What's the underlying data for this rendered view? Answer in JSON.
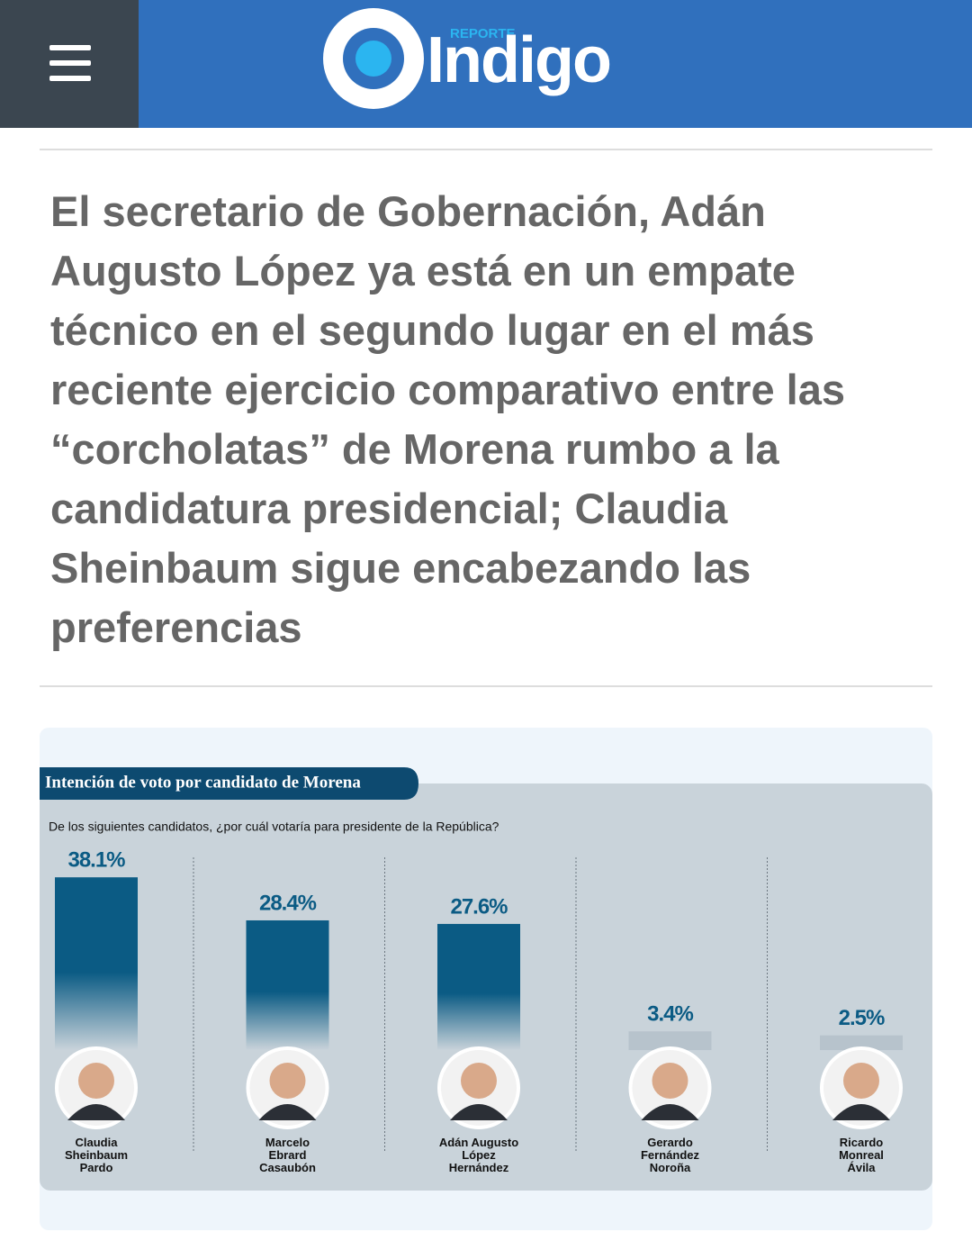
{
  "header": {
    "logo_small": "REPORTE",
    "logo_text": "Indigo"
  },
  "headline": "El secretario de Gobernación, Adán Augusto López ya está en un empate técnico en el segundo lugar en el más reciente ejercicio comparativo entre las “corcholatas” de Morena rumbo a la candidatura presidencial; Claudia Sheinbaum sigue encabezando las preferencias",
  "chart_data": {
    "type": "bar",
    "title": "Intención de voto por candidato de Morena",
    "subtitle": "De los siguientes candidatos, ¿por cuál votaría para presidente de la República?",
    "categories": [
      "Claudia\nSheinbaum\nPardo",
      "Marcelo\nEbrard\nCasaubón",
      "Adán Augusto\nLópez\nHernández",
      "Gerardo\nFernández\nNoroña",
      "Ricardo\nMonreal\nÁvila"
    ],
    "values": [
      38.1,
      28.4,
      27.6,
      3.4,
      2.5
    ],
    "value_labels": [
      "38.1%",
      "28.4%",
      "27.6%",
      "3.4%",
      "2.5%"
    ],
    "color": "#0b5b84"
  }
}
